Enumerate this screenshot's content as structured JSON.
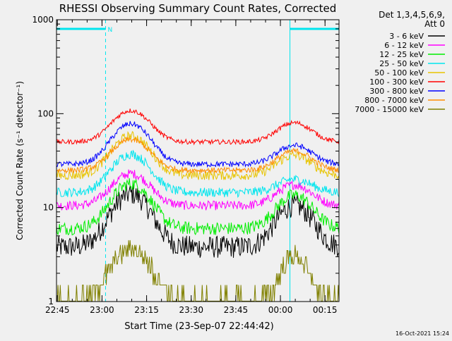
{
  "chart_data": {
    "type": "line",
    "title": "RHESSI Observing Summary Count Rates, Corrected",
    "xlabel": "Start Time (23-Sep-07 22:44:42)",
    "ylabel": "Corrected Count Rate (s⁻¹ detector⁻¹)",
    "ylog": true,
    "ylim": [
      1,
      1000
    ],
    "xlim_minutes": [
      0,
      95
    ],
    "x_ticks": [
      "22:45",
      "23:00",
      "23:15",
      "23:30",
      "23:45",
      "00:00",
      "00:15"
    ],
    "y_ticks": [
      "1",
      "10",
      "100",
      "1000"
    ],
    "legend_header": [
      "Det 1,3,4,5,6,9,",
      "Att 0"
    ],
    "legend_position": "right",
    "footer": "16-Oct-2021 15:24",
    "night_markers": {
      "label": "N",
      "color": "#00e5ee",
      "lines_min": [
        0,
        16.5,
        78.5,
        95
      ]
    },
    "series": [
      {
        "name": "3 - 6 keV",
        "color": "#000000",
        "base": 3.8,
        "peak1": 14,
        "peak2": 10.5,
        "noise": 0.12
      },
      {
        "name": "6 - 12 keV",
        "color": "#ff00ff",
        "base": 10.5,
        "peak1": 23,
        "peak2": 17.5,
        "noise": 0.05
      },
      {
        "name": "12 - 25 keV",
        "color": "#00ee00",
        "base": 6.0,
        "peak1": 18,
        "peak2": 13.5,
        "noise": 0.07
      },
      {
        "name": "25 - 50 keV",
        "color": "#00e5ee",
        "base": 14.5,
        "peak1": 37,
        "peak2": 20,
        "noise": 0.05
      },
      {
        "name": "50 - 100 keV",
        "color": "#e8c400",
        "base": 22,
        "peak1": 58,
        "peak2": 36,
        "noise": 0.05
      },
      {
        "name": "100 - 300 keV",
        "color": "#ff0000",
        "base": 50,
        "peak1": 108,
        "peak2": 80,
        "noise": 0.025
      },
      {
        "name": "300 - 800 keV",
        "color": "#0000ff",
        "base": 29,
        "peak1": 78,
        "peak2": 46,
        "noise": 0.03
      },
      {
        "name": "800 - 7000 keV",
        "color": "#ff8c00",
        "base": 25,
        "peak1": 53,
        "peak2": 40,
        "noise": 0.03
      },
      {
        "name": "7000 - 15000 keV",
        "color": "#808000",
        "base": 1.0,
        "peak1": 3.5,
        "peak2": 3.0,
        "noise": 0.0
      }
    ]
  }
}
